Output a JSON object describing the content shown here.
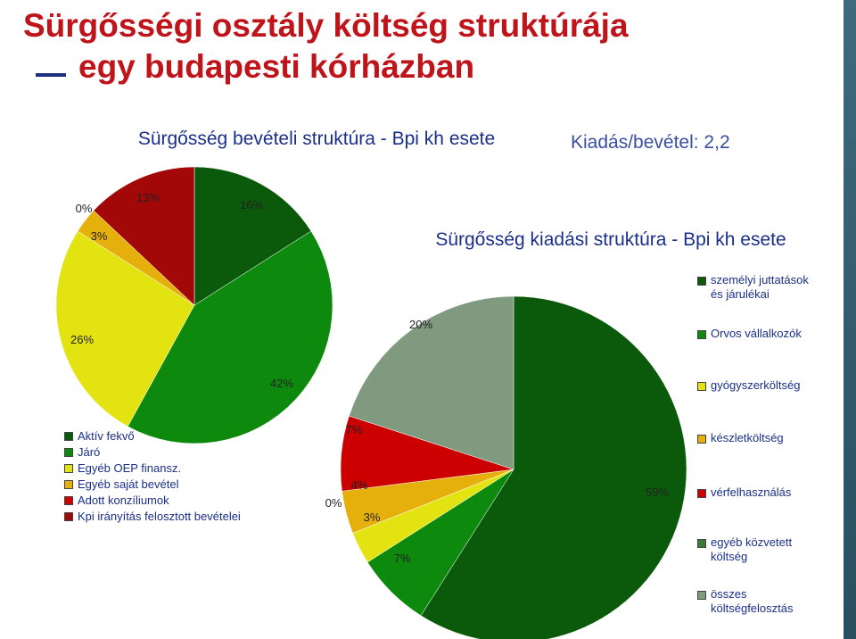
{
  "slide": {
    "title_line1": "Sürgősségi osztály költség struktúrája",
    "title_line2": "egy budapesti kórházban",
    "income_chart_title": "Sürgősség bevételi struktúra - Bpi kh esete",
    "expense_chart_title": "Sürgősség kiadási struktúra - Bpi kh esete",
    "ratio_text": "Kiadás/bevétel: 2,2"
  },
  "chart_data": [
    {
      "type": "pie",
      "title": "Sürgősség bevételi struktúra - Bpi kh esete",
      "labels": [
        "Aktív fekvő",
        "Járó",
        "Egyéb OEP finansz.",
        "Egyéb saját bevétel",
        "Adott konzíliumok",
        "Kpi irányítás felosztott bevételei"
      ],
      "values": [
        16,
        42,
        26,
        3,
        0,
        13
      ],
      "value_labels": [
        "16%",
        "42%",
        "26%",
        "3%",
        "0%",
        "13%"
      ],
      "colors": [
        "#0b5a0b",
        "#0d8a0d",
        "#e3e311",
        "#e6b00c",
        "#cc0000",
        "#a30808"
      ],
      "legend_position": "bottom-left"
    },
    {
      "type": "pie",
      "title": "Sürgősség kiadási struktúra - Bpi kh esete",
      "labels": [
        "személyi juttatások és járulékai",
        "Orvos vállalkozók",
        "gyógyszerköltség",
        "készletköltség",
        "vérfelhasználás",
        "egyéb közvetett költség",
        "összes költségfelosztás"
      ],
      "values": [
        59,
        7,
        3,
        4,
        7,
        0,
        20
      ],
      "value_labels": [
        "59%",
        "7%",
        "3%",
        "4%",
        "7%",
        "0%",
        "20%"
      ],
      "colors": [
        "#0b5a0b",
        "#0d8a0d",
        "#e3e311",
        "#e6b00c",
        "#cc0000",
        "#3b7a3b",
        "#7f9a7f"
      ],
      "legend_position": "right"
    }
  ]
}
